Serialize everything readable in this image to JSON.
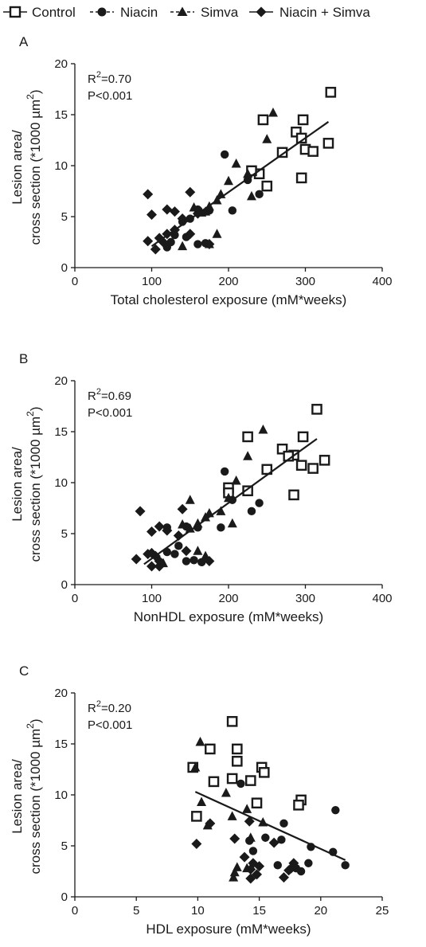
{
  "legend": [
    {
      "label": "Control",
      "marker": "square-open"
    },
    {
      "label": "Niacin",
      "marker": "circle"
    },
    {
      "label": "Simva",
      "marker": "triangle"
    },
    {
      "label": "Niacin + Simva",
      "marker": "diamond"
    }
  ],
  "chart_data": [
    {
      "type": "scatter",
      "panel": "A",
      "xlabel": "Total cholesterol exposure (mM*weeks)",
      "ylabel_line1": "Lesion area/",
      "ylabel_line2": "cross section (*1000 µm",
      "ylabel_sup": "2",
      "ylabel_close": ")",
      "stat_r_prefix": "R",
      "stat_r_sup": "2",
      "stat_r_value": "=0.70",
      "stat_p": "P<0.001",
      "xlim": [
        0,
        400
      ],
      "ylim": [
        0,
        20
      ],
      "xticks": [
        0,
        100,
        200,
        300,
        400
      ],
      "yticks": [
        0,
        5,
        10,
        15,
        20
      ],
      "regression": {
        "x": [
          100,
          330
        ],
        "y": [
          2.1,
          14.3
        ]
      },
      "series": [
        {
          "name": "Control",
          "marker": "square-open",
          "points": [
            [
              245,
              14.5
            ],
            [
              297,
              14.5
            ],
            [
              333,
              17.2
            ],
            [
              288,
              13.3
            ],
            [
              295,
              12.7
            ],
            [
              330,
              12.2
            ],
            [
              300,
              11.6
            ],
            [
              270,
              11.3
            ],
            [
              310,
              11.4
            ],
            [
              240,
              9.2
            ],
            [
              250,
              8.0
            ],
            [
              295,
              8.8
            ],
            [
              230,
              9.5
            ]
          ]
        },
        {
          "name": "Niacin",
          "marker": "circle",
          "points": [
            [
              195,
              11.1
            ],
            [
              225,
              8.6
            ],
            [
              240,
              7.2
            ],
            [
              205,
              5.6
            ],
            [
              175,
              5.6
            ],
            [
              160,
              5.7
            ],
            [
              170,
              2.4
            ],
            [
              160,
              2.3
            ],
            [
              145,
              3.0
            ],
            [
              130,
              3.2
            ],
            [
              125,
              2.5
            ],
            [
              140,
              4.5
            ],
            [
              150,
              4.8
            ],
            [
              120,
              2.0
            ]
          ]
        },
        {
          "name": "Simva",
          "marker": "triangle",
          "points": [
            [
              258,
              15.2
            ],
            [
              250,
              12.6
            ],
            [
              210,
              10.2
            ],
            [
              225,
              9.2
            ],
            [
              200,
              8.5
            ],
            [
              190,
              7.2
            ],
            [
              185,
              6.6
            ],
            [
              175,
              6.0
            ],
            [
              170,
              5.5
            ],
            [
              155,
              5.9
            ],
            [
              140,
              2.1
            ],
            [
              175,
              2.3
            ],
            [
              185,
              3.3
            ],
            [
              165,
              5.4
            ],
            [
              230,
              7.0
            ]
          ]
        },
        {
          "name": "Niacin + Simva",
          "marker": "diamond",
          "points": [
            [
              95,
              7.2
            ],
            [
              150,
              7.4
            ],
            [
              100,
              5.2
            ],
            [
              120,
              5.7
            ],
            [
              130,
              5.5
            ],
            [
              160,
              5.3
            ],
            [
              140,
              4.8
            ],
            [
              130,
              3.7
            ],
            [
              120,
              3.3
            ],
            [
              110,
              2.9
            ],
            [
              115,
              2.5
            ],
            [
              95,
              2.6
            ],
            [
              105,
              1.8
            ],
            [
              150,
              3.3
            ],
            [
              175,
              2.3
            ]
          ]
        }
      ]
    },
    {
      "type": "scatter",
      "panel": "B",
      "xlabel": "NonHDL exposure (mM*weeks)",
      "ylabel_line1": "Lesion area/",
      "ylabel_line2": "cross section (*1000 µm",
      "ylabel_sup": "2",
      "ylabel_close": ")",
      "stat_r_prefix": "R",
      "stat_r_sup": "2",
      "stat_r_value": "=0.69",
      "stat_p": "P<0.001",
      "xlim": [
        0,
        400
      ],
      "ylim": [
        0,
        20
      ],
      "xticks": [
        0,
        100,
        200,
        300,
        400
      ],
      "yticks": [
        0,
        5,
        10,
        15,
        20
      ],
      "regression": {
        "x": [
          90,
          315
        ],
        "y": [
          2.0,
          14.3
        ]
      },
      "series": [
        {
          "name": "Control",
          "marker": "square-open",
          "points": [
            [
              225,
              14.5
            ],
            [
              297,
              14.5
            ],
            [
              315,
              17.2
            ],
            [
              270,
              13.3
            ],
            [
              285,
              12.7
            ],
            [
              278,
              12.6
            ],
            [
              325,
              12.2
            ],
            [
              295,
              11.7
            ],
            [
              310,
              11.4
            ],
            [
              250,
              11.3
            ],
            [
              200,
              9.5
            ],
            [
              225,
              9.2
            ],
            [
              285,
              8.8
            ],
            [
              200,
              9.0
            ]
          ]
        },
        {
          "name": "Niacin",
          "marker": "circle",
          "points": [
            [
              195,
              11.1
            ],
            [
              205,
              8.3
            ],
            [
              240,
              8.0
            ],
            [
              230,
              7.2
            ],
            [
              190,
              5.6
            ],
            [
              160,
              5.6
            ],
            [
              145,
              5.7
            ],
            [
              135,
              3.8
            ],
            [
              130,
              3.0
            ],
            [
              120,
              3.2
            ],
            [
              155,
              2.4
            ],
            [
              145,
              2.3
            ],
            [
              120,
              5.6
            ],
            [
              165,
              2.2
            ]
          ]
        },
        {
          "name": "Simva",
          "marker": "triangle",
          "points": [
            [
              245,
              15.2
            ],
            [
              225,
              12.6
            ],
            [
              210,
              10.2
            ],
            [
              200,
              8.5
            ],
            [
              190,
              7.2
            ],
            [
              175,
              7.0
            ],
            [
              170,
              6.6
            ],
            [
              160,
              6.0
            ],
            [
              150,
              5.5
            ],
            [
              140,
              5.9
            ],
            [
              115,
              2.1
            ],
            [
              170,
              2.8
            ],
            [
              160,
              3.3
            ],
            [
              150,
              8.3
            ],
            [
              205,
              6.0
            ]
          ]
        },
        {
          "name": "Niacin + Simva",
          "marker": "diamond",
          "points": [
            [
              80,
              2.5
            ],
            [
              85,
              7.2
            ],
            [
              140,
              7.4
            ],
            [
              100,
              5.2
            ],
            [
              110,
              5.7
            ],
            [
              120,
              5.3
            ],
            [
              135,
              4.8
            ],
            [
              100,
              3.1
            ],
            [
              95,
              3.0
            ],
            [
              105,
              2.8
            ],
            [
              110,
              1.8
            ],
            [
              100,
              1.8
            ],
            [
              145,
              3.3
            ],
            [
              175,
              2.3
            ],
            [
              110,
              2.3
            ]
          ]
        }
      ]
    },
    {
      "type": "scatter",
      "panel": "C",
      "xlabel": "HDL exposure (mM*weeks)",
      "ylabel_line1": "Lesion area/",
      "ylabel_line2": "cross section (*1000 µm",
      "ylabel_sup": "2",
      "ylabel_close": ")",
      "stat_r_prefix": "R",
      "stat_r_sup": "2",
      "stat_r_value": "=0.20",
      "stat_p": "P<0.001",
      "xlim": [
        0,
        25
      ],
      "ylim": [
        0,
        20
      ],
      "xticks": [
        0,
        5,
        10,
        15,
        20,
        25
      ],
      "yticks": [
        0,
        5,
        10,
        15,
        20
      ],
      "regression": {
        "x": [
          9.8,
          22
        ],
        "y": [
          10.3,
          3.6
        ]
      },
      "series": [
        {
          "name": "Control",
          "marker": "square-open",
          "points": [
            [
              12.8,
              17.2
            ],
            [
              11.0,
              14.5
            ],
            [
              13.2,
              14.5
            ],
            [
              13.2,
              13.3
            ],
            [
              9.6,
              12.7
            ],
            [
              15.2,
              12.7
            ],
            [
              15.4,
              12.2
            ],
            [
              12.8,
              11.6
            ],
            [
              11.3,
              11.3
            ],
            [
              14.3,
              11.4
            ],
            [
              14.8,
              9.2
            ],
            [
              18.4,
              9.5
            ],
            [
              18.2,
              9.0
            ],
            [
              9.9,
              7.9
            ]
          ]
        },
        {
          "name": "Niacin",
          "marker": "circle",
          "points": [
            [
              13.5,
              11.1
            ],
            [
              21.2,
              8.5
            ],
            [
              17.0,
              7.2
            ],
            [
              14.2,
              5.5
            ],
            [
              15.5,
              5.8
            ],
            [
              16.8,
              5.6
            ],
            [
              19.2,
              4.9
            ],
            [
              21.0,
              4.4
            ],
            [
              16.5,
              3.1
            ],
            [
              18.0,
              2.8
            ],
            [
              18.4,
              2.5
            ],
            [
              22.0,
              3.1
            ],
            [
              14.5,
              4.5
            ],
            [
              19.0,
              3.3
            ]
          ]
        },
        {
          "name": "Simva",
          "marker": "triangle",
          "points": [
            [
              10.2,
              15.2
            ],
            [
              9.8,
              12.7
            ],
            [
              12.3,
              10.2
            ],
            [
              10.3,
              9.3
            ],
            [
              12.8,
              7.9
            ],
            [
              14.0,
              8.6
            ],
            [
              15.3,
              7.3
            ],
            [
              14.3,
              5.8
            ],
            [
              13.0,
              2.4
            ],
            [
              14.0,
              2.8
            ],
            [
              12.9,
              1.9
            ],
            [
              13.2,
              2.9
            ],
            [
              10.8,
              7.0
            ]
          ]
        },
        {
          "name": "Niacin + Simva",
          "marker": "diamond",
          "points": [
            [
              9.9,
              5.2
            ],
            [
              11.0,
              7.2
            ],
            [
              14.2,
              7.4
            ],
            [
              13.0,
              5.7
            ],
            [
              13.8,
              3.9
            ],
            [
              14.5,
              3.3
            ],
            [
              14.3,
              2.7
            ],
            [
              14.8,
              2.2
            ],
            [
              14.3,
              1.8
            ],
            [
              16.2,
              5.3
            ],
            [
              17.8,
              3.3
            ],
            [
              17.6,
              2.8
            ],
            [
              17.4,
              2.6
            ],
            [
              17.0,
              1.9
            ],
            [
              15.0,
              3.0
            ]
          ]
        }
      ]
    }
  ]
}
